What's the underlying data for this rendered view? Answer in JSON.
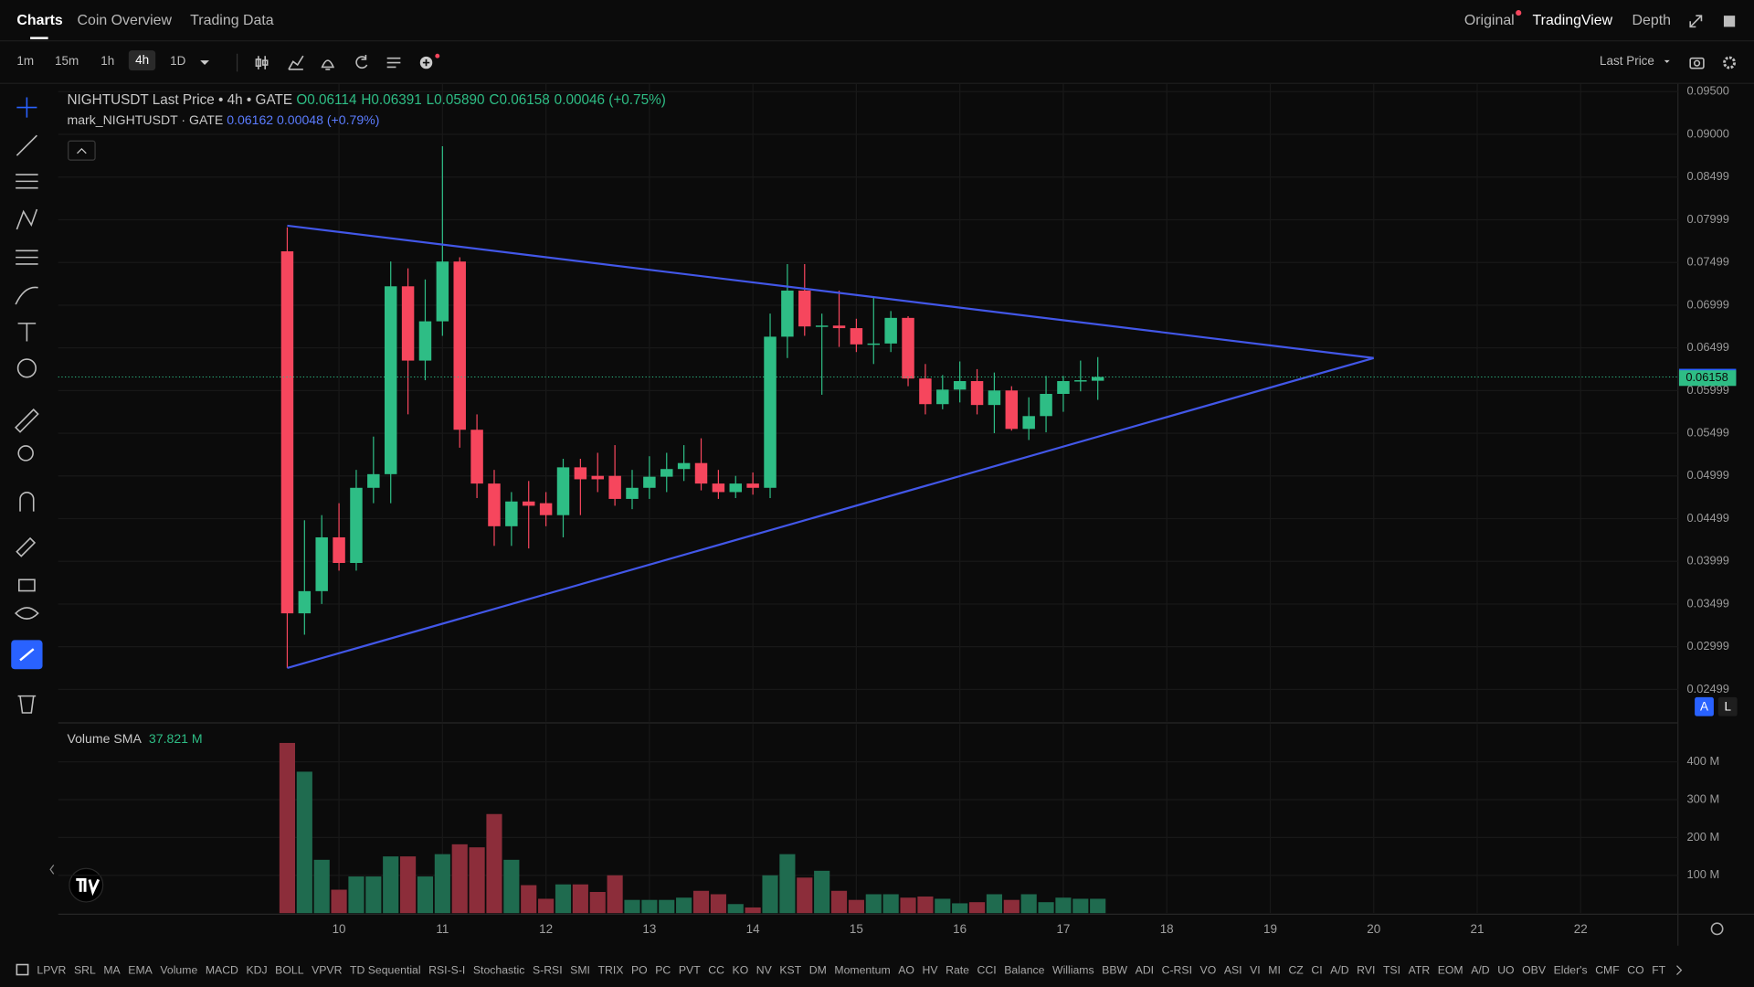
{
  "nav": {
    "tabs": [
      "Charts",
      "Coin Overview",
      "Trading Data"
    ],
    "views": [
      "Original",
      "TradingView",
      "Depth"
    ]
  },
  "toolbar": {
    "intervals": [
      "1m",
      "15m",
      "1h",
      "4h",
      "1D"
    ],
    "price_source": "Last Price"
  },
  "indicators": [
    "LPVR",
    "SRL",
    "MA",
    "EMA",
    "Volume",
    "MACD",
    "KDJ",
    "BOLL",
    "VPVR",
    "TD Sequential",
    "RSI-S-I",
    "Stochastic",
    "S-RSI",
    "SMI",
    "TRIX",
    "PO",
    "PC",
    "PVT",
    "CC",
    "KO",
    "NV",
    "KST",
    "DM",
    "Momentum",
    "AO",
    "HV",
    "Rate",
    "CCI",
    "Balance",
    "Williams",
    "BBW",
    "ADI",
    "C-RSI",
    "VO",
    "ASI",
    "VI",
    "MI",
    "CZ",
    "CI",
    "A/D",
    "RVI",
    "TSI",
    "ATR",
    "EOM",
    "A/D",
    "UO",
    "OBV",
    "Elder's",
    "CMF",
    "CO",
    "FT"
  ],
  "chart_data": [
    {
      "type": "candlestick",
      "title": "NIGHTUSDT Last Price • 4h • GATE",
      "ohlc_text": [
        "O0.06114",
        "H0.06391",
        "L0.05890",
        "C0.06158",
        "0.00046 (+0.75%)"
      ],
      "mark_title": "mark_NIGHTUSDT · GATE",
      "mark_change": "0.00048 (+0.79%)",
      "mark_price": 0.06162,
      "last_price": 0.06158,
      "axis_buttons": [
        "A",
        "L"
      ],
      "up_color": "#2ebd85",
      "down_color": "#f6465d",
      "mark_color": "#2962ff",
      "x": [
        9.5,
        9.6667,
        9.8333,
        10,
        10.1667,
        10.3333,
        10.5,
        10.6667,
        10.8333,
        11,
        11.1667,
        11.3333,
        11.5,
        11.6667,
        11.8333,
        12,
        12.1667,
        12.3333,
        12.5,
        12.6667,
        12.8333,
        13,
        13.1667,
        13.3333,
        13.5,
        13.6667,
        13.8333,
        14,
        14.1667,
        14.3333,
        14.5,
        14.6667,
        14.8333,
        15,
        15.1667,
        15.3333,
        15.5,
        15.6667,
        15.8333,
        16,
        16.1667,
        16.3333,
        16.5,
        16.6667,
        16.8333,
        17,
        17.1667,
        17.3333
      ],
      "open": [
        0.0763,
        0.0339,
        0.0365,
        0.0428,
        0.0398,
        0.0486,
        0.0502,
        0.0722,
        0.0635,
        0.0681,
        0.0751,
        0.0554,
        0.0491,
        0.0441,
        0.047,
        0.0468,
        0.0454,
        0.051,
        0.05,
        0.05,
        0.0473,
        0.0486,
        0.0499,
        0.0508,
        0.0515,
        0.0491,
        0.0481,
        0.0491,
        0.0486,
        0.0663,
        0.0717,
        0.0675,
        0.0676,
        0.0673,
        0.0654,
        0.0655,
        0.0685,
        0.0614,
        0.0584,
        0.0601,
        0.0611,
        0.0583,
        0.06,
        0.0555,
        0.057,
        0.0596,
        0.0611,
        0.06114
      ],
      "high": [
        0.0791,
        0.0448,
        0.0454,
        0.0468,
        0.0507,
        0.0546,
        0.0751,
        0.0743,
        0.073,
        0.0886,
        0.0756,
        0.0572,
        0.0507,
        0.0481,
        0.0494,
        0.0481,
        0.052,
        0.052,
        0.0527,
        0.0536,
        0.0507,
        0.0523,
        0.0527,
        0.0536,
        0.0544,
        0.0507,
        0.05,
        0.0504,
        0.069,
        0.0748,
        0.0748,
        0.069,
        0.0717,
        0.0684,
        0.071,
        0.0693,
        0.0687,
        0.0631,
        0.0618,
        0.0634,
        0.0625,
        0.0621,
        0.0605,
        0.0592,
        0.0617,
        0.0617,
        0.0635,
        0.06391
      ],
      "low": [
        0.0275,
        0.0314,
        0.035,
        0.0389,
        0.0389,
        0.0468,
        0.0468,
        0.0572,
        0.0612,
        0.0664,
        0.0533,
        0.0474,
        0.0418,
        0.0418,
        0.0415,
        0.0441,
        0.0428,
        0.0454,
        0.0481,
        0.0465,
        0.0461,
        0.0473,
        0.0481,
        0.0494,
        0.0483,
        0.0473,
        0.0474,
        0.0478,
        0.0474,
        0.0638,
        0.0664,
        0.0595,
        0.0651,
        0.0645,
        0.0631,
        0.0645,
        0.0605,
        0.0572,
        0.0578,
        0.0586,
        0.0572,
        0.055,
        0.0553,
        0.0542,
        0.0551,
        0.0575,
        0.0599,
        0.0589
      ],
      "close": [
        0.0339,
        0.0365,
        0.0428,
        0.0398,
        0.0486,
        0.0502,
        0.0722,
        0.0635,
        0.0681,
        0.0751,
        0.0554,
        0.0491,
        0.0441,
        0.047,
        0.0465,
        0.0454,
        0.051,
        0.0496,
        0.0496,
        0.0473,
        0.0486,
        0.0499,
        0.0508,
        0.0515,
        0.0491,
        0.0481,
        0.0491,
        0.0486,
        0.0663,
        0.0717,
        0.0675,
        0.0676,
        0.0673,
        0.0654,
        0.0655,
        0.0685,
        0.0614,
        0.0584,
        0.0601,
        0.0611,
        0.0583,
        0.06,
        0.0555,
        0.057,
        0.0596,
        0.0611,
        0.0612,
        0.06158
      ],
      "xlim": [
        7.286,
        22.94
      ],
      "xticks": [
        10,
        11,
        12,
        13,
        14,
        15,
        16,
        17,
        18,
        19,
        20,
        21,
        22
      ],
      "ylim": [
        0.0212,
        0.0959
      ],
      "yticks": [
        {
          "value": 0.095,
          "label": "0.09500"
        },
        {
          "value": 0.09,
          "label": "0.09000"
        },
        0.08499,
        0.07999,
        0.07499,
        0.06999,
        0.06499,
        0.05999,
        0.05499,
        0.04999,
        0.04499,
        0.03999,
        0.03499,
        0.02999,
        0.02499
      ],
      "grid": true,
      "drawings": [
        {
          "color": "#4257e8",
          "points": [
            [
              9.5,
              0.0793
            ],
            [
              20,
              0.0638
            ]
          ]
        },
        {
          "color": "#4257e8",
          "points": [
            [
              9.5,
              0.0275
            ],
            [
              20,
              0.0638
            ]
          ]
        }
      ]
    },
    {
      "type": "bar",
      "title": "Volume SMA",
      "sma_label": "37.821 M",
      "up_color": "#1f6b4f",
      "down_color": "#8c2d3a",
      "values": [
        450000000,
        374000000,
        141000000,
        62000000,
        97000000,
        97000000,
        150000000,
        150000000,
        97000000,
        156000000,
        182000000,
        174000000,
        262000000,
        141000000,
        74000000,
        38000000,
        76000000,
        76000000,
        56000000,
        100000000,
        35000000,
        35000000,
        35000000,
        41000000,
        59000000,
        50000000,
        24000000,
        15000000,
        100000000,
        156000000,
        94000000,
        112000000,
        59000000,
        35000000,
        50000000,
        50000000,
        41000000,
        44000000,
        38000000,
        26000000,
        29000000,
        50000000,
        35000000,
        50000000,
        29000000,
        41000000,
        38000000,
        38000000
      ],
      "ylim": [
        0,
        500000000
      ],
      "yticks": [
        {
          "value": 100000000,
          "label": "100 M"
        },
        {
          "value": 200000000,
          "label": "200 M"
        },
        {
          "value": 300000000,
          "label": "300 M"
        },
        {
          "value": 400000000,
          "label": "400 M"
        }
      ]
    }
  ]
}
